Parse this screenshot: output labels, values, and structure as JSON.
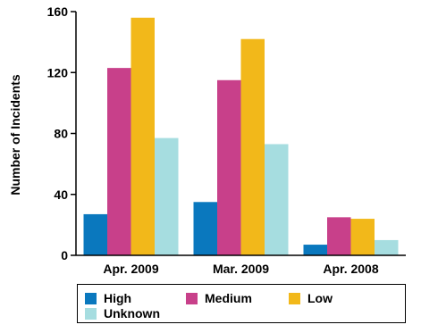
{
  "chart_data": {
    "type": "bar",
    "categories": [
      "Apr. 2009",
      "Mar. 2009",
      "Apr. 2008"
    ],
    "series": [
      {
        "name": "High",
        "color": "#0a78be",
        "values": [
          27,
          35,
          7
        ]
      },
      {
        "name": "Medium",
        "color": "#c8408a",
        "values": [
          123,
          115,
          25
        ]
      },
      {
        "name": "Low",
        "color": "#f2b81a",
        "values": [
          156,
          142,
          24
        ]
      },
      {
        "name": "Unknown",
        "color": "#a6dde0",
        "values": [
          77,
          73,
          10
        ]
      }
    ],
    "ylabel": "Number of Incidents",
    "ylim": [
      0,
      160
    ],
    "yticks": [
      "0",
      "40",
      "80",
      "120",
      "160"
    ],
    "grid": false,
    "legend_position": "bottom"
  }
}
